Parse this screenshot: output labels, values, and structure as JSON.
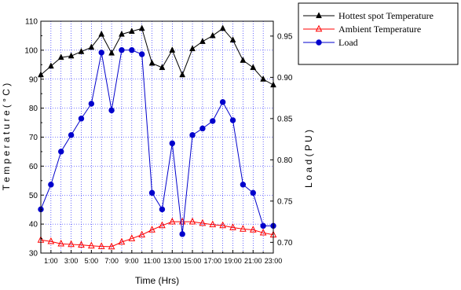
{
  "chart_data": {
    "type": "line",
    "xlabel": "Time (Hrs)",
    "ylabel_left": "T e m p e r a t u r e  ( ° C )",
    "ylabel_right": "L o a d  ( P U )",
    "x": [
      0,
      1,
      2,
      3,
      4,
      5,
      6,
      7,
      8,
      9,
      10,
      11,
      12,
      13,
      14,
      15,
      16,
      17,
      18,
      19,
      20,
      21,
      22,
      23
    ],
    "x_tick_labels": [
      "1:00",
      "3:00",
      "5:00",
      "7:00",
      "9:00",
      "11:00",
      "13:00",
      "15:00",
      "17:00",
      "19:00",
      "21:00",
      "23:00"
    ],
    "y_left_ticks": [
      "30",
      "40",
      "50",
      "60",
      "70",
      "80",
      "90",
      "100",
      "110"
    ],
    "y_right_ticks": [
      "0.70",
      "0.75",
      "0.80",
      "0.85",
      "0.90",
      "0.95"
    ],
    "ylim_left": [
      30,
      110
    ],
    "ylim_right": [
      0.687,
      0.968
    ],
    "grid": true,
    "legend_position": "top-right",
    "series": [
      {
        "name": "Hottest spot Temperature",
        "axis": "left",
        "color": "#000000",
        "marker": "triangle",
        "values": [
          91.5,
          94.5,
          97.5,
          98,
          99.5,
          101,
          105.5,
          99,
          105.5,
          106.5,
          107.5,
          95.5,
          94,
          100,
          91.5,
          100.5,
          103,
          105,
          107.5,
          103.5,
          96.5,
          94,
          90,
          88
        ]
      },
      {
        "name": "Ambient Temperature",
        "axis": "left",
        "color": "#ff0000",
        "marker": "triangle-open",
        "values": [
          34.5,
          34,
          33.2,
          33,
          32.8,
          32.5,
          32.3,
          32.2,
          33.8,
          35,
          36.3,
          38,
          39.5,
          40.8,
          40.8,
          40.8,
          40.3,
          39.8,
          39.5,
          38.8,
          38.3,
          38,
          37,
          36.3
        ]
      },
      {
        "name": "Load",
        "axis": "right",
        "color": "#0000cc",
        "marker": "circle",
        "values": [
          0.74,
          0.77,
          0.81,
          0.83,
          0.85,
          0.868,
          0.93,
          0.86,
          0.933,
          0.933,
          0.928,
          0.76,
          0.74,
          0.82,
          0.71,
          0.83,
          0.838,
          0.847,
          0.87,
          0.848,
          0.77,
          0.76,
          0.72,
          0.72
        ]
      }
    ]
  }
}
